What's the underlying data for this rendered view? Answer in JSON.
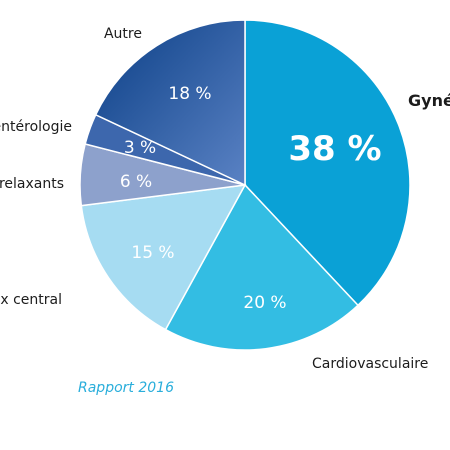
{
  "chart_data": {
    "type": "pie",
    "slices": [
      {
        "label": "Gynécologie",
        "value": 38,
        "value_label": "38 %",
        "color": "#0aa1d6"
      },
      {
        "label": "Cardiovasculaire",
        "value": 20,
        "value_label": "20 %",
        "color": "#33bde3"
      },
      {
        "label": "Système nerveux central",
        "value": 15,
        "value_label": "15 %",
        "color": "#a6dcf2"
      },
      {
        "label": "Myorelaxants",
        "value": 6,
        "value_label": "6 %",
        "color": "#8da1cc"
      },
      {
        "label": "Gastro-entérologie",
        "value": 3,
        "value_label": "3 %",
        "color": "#3d67ad"
      },
      {
        "label": "Autre",
        "value": 18,
        "value_label": "18 %",
        "color": "#1e5ba6"
      }
    ]
  },
  "footer": {
    "caption": "Rapport 2016",
    "color": "#2aaedb"
  }
}
